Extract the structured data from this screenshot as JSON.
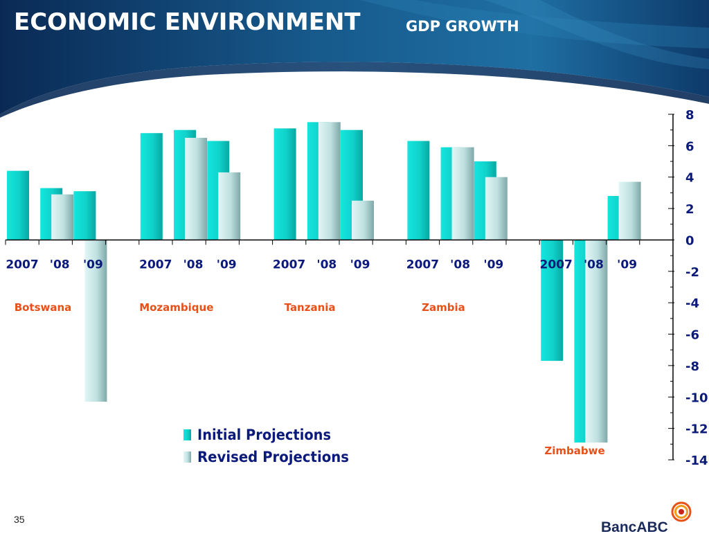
{
  "slide": {
    "title": "ECONOMIC ENVIRONMENT",
    "subtitle": "GDP GROWTH",
    "page_number": "35",
    "logo_text": "BancABC",
    "logo_icon": "swirl-logo-icon"
  },
  "colors": {
    "header_dark": "#0a2a55",
    "header_mid": "#175a8c",
    "initial_bar": "#12d8d0",
    "revised_bar": "#bfe2e2",
    "axis_text": "#0b1a7a",
    "country_label": "#e8501a",
    "logo_ring": "#e8501a"
  },
  "chart_data": {
    "type": "bar",
    "ylim": [
      -14,
      8
    ],
    "yticks": [
      "8",
      "6",
      "4",
      "2",
      "0",
      "-2",
      "-4",
      "-6",
      "-8",
      "-10",
      "-12",
      "-14"
    ],
    "y_axis_position": "right",
    "groups": [
      {
        "country": "Botswana",
        "years": [
          "2007",
          "'08",
          "'09"
        ],
        "initial": [
          4.4,
          3.3,
          3.1
        ],
        "revised": [
          null,
          2.9,
          -10.3
        ]
      },
      {
        "country": "Mozambique",
        "years": [
          "2007",
          "'08",
          "'09"
        ],
        "initial": [
          6.8,
          7.0,
          6.3
        ],
        "revised": [
          null,
          6.5,
          4.3
        ]
      },
      {
        "country": "Tanzania",
        "years": [
          "2007",
          "'08",
          "'09"
        ],
        "initial": [
          7.1,
          7.5,
          7.0
        ],
        "revised": [
          null,
          7.5,
          2.5
        ]
      },
      {
        "country": "Zambia",
        "years": [
          "2007",
          "'08",
          "'09"
        ],
        "initial": [
          6.3,
          5.9,
          5.0
        ],
        "revised": [
          null,
          5.9,
          4.0
        ]
      },
      {
        "country": "Zimbabwe",
        "years": [
          "2007",
          "'08",
          "'09"
        ],
        "initial": [
          -7.7,
          -12.9,
          2.8
        ],
        "revised": [
          null,
          -12.9,
          3.7
        ]
      }
    ],
    "legend": {
      "placement": "bottom-center",
      "entries": [
        {
          "name": "Initial Projections",
          "key": "initial"
        },
        {
          "name": "Revised Projections",
          "key": "revised"
        }
      ]
    }
  }
}
